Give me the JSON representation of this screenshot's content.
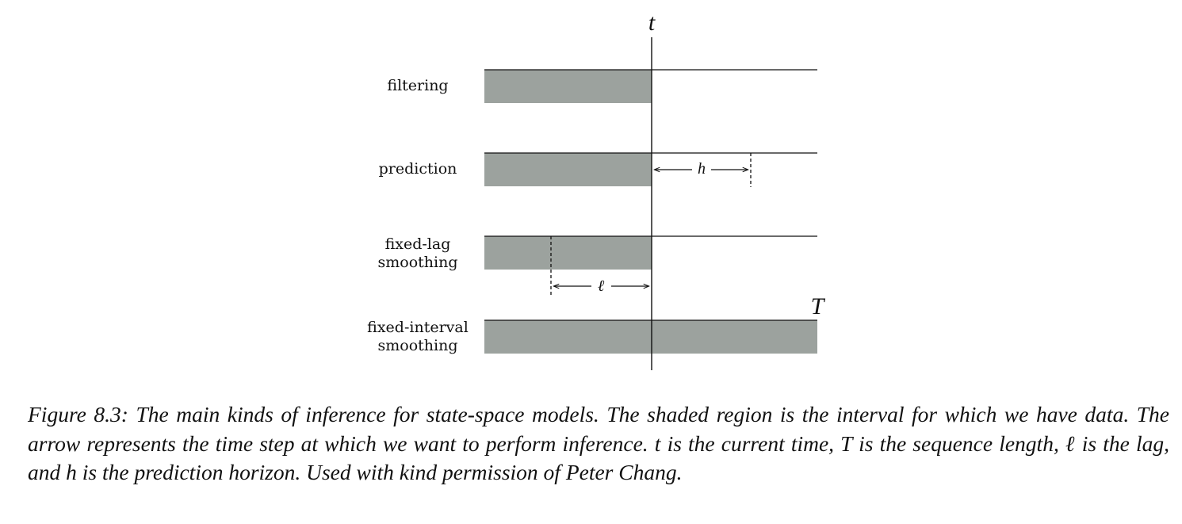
{
  "diagram": {
    "time_label": "t",
    "end_label": "T",
    "lag_label": "ℓ",
    "horizon_label": "h",
    "rows": [
      {
        "id": "filtering",
        "label_lines": [
          "filtering"
        ]
      },
      {
        "id": "prediction",
        "label_lines": [
          "prediction"
        ]
      },
      {
        "id": "fixed-lag",
        "label_lines": [
          "fixed-lag",
          "smoothing"
        ]
      },
      {
        "id": "fixed-interval",
        "label_lines": [
          "fixed-interval",
          "smoothing"
        ]
      }
    ],
    "colors": {
      "shade": "#9ca29e",
      "line": "#111111"
    }
  },
  "caption": {
    "text": "Figure 8.3: The main kinds of inference for state-space models. The shaded region is the interval for which we have data. The arrow represents the time step at which we want to perform inference. t is the current time, T is the sequence length, ℓ is the lag, and h is the prediction horizon. Used with kind permission of Peter Chang."
  }
}
